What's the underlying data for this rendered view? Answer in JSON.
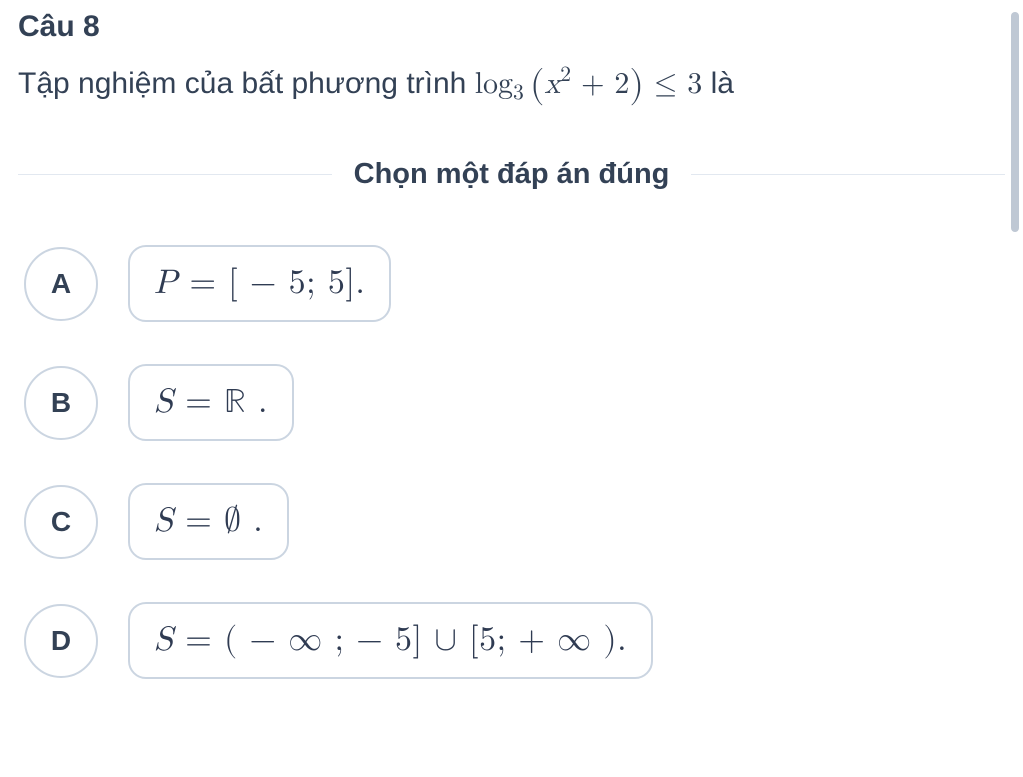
{
  "colors": {
    "text": "#334155",
    "border": "#cbd5e1",
    "divider": "#e2e8f0",
    "scrollbar": "#bfc8d4",
    "background": "#ffffff"
  },
  "question": {
    "number_label": "Câu 8",
    "prefix_text": "Tập nghiệm của bất phương trình ",
    "suffix_text": " là",
    "expression": {
      "display": "log_3 ( x^2 + 2 ) ≤ 3",
      "op": "log",
      "base": "3",
      "open_paren": "(",
      "var": "x",
      "exp": "2",
      "plus": " + ",
      "const": "2",
      "close_paren": ")",
      "rel": " ≤ ",
      "rhs": "3"
    }
  },
  "divider_label": "Chọn một đáp án đúng",
  "options": [
    {
      "key": "A",
      "parts": {
        "lhs_var": "P",
        "eq": " = ",
        "body": "[ − 5;  5].",
        "display": "P = [ −5; 5 ]."
      }
    },
    {
      "key": "B",
      "parts": {
        "lhs_var": "S",
        "eq": " = ",
        "rset": "ℝ",
        "tail": " .",
        "display": "S = ℝ ."
      }
    },
    {
      "key": "C",
      "parts": {
        "lhs_var": "S",
        "eq": " = ",
        "rset": "∅",
        "tail": " .",
        "display": "S = ∅ ."
      }
    },
    {
      "key": "D",
      "parts": {
        "lhs_var": "S",
        "eq": " = ",
        "body": "( − ∞ ;  − 5] ∪ [5;  + ∞ ).",
        "display": "S = ( −∞ ; −5 ] ∪ [ 5; +∞ )."
      }
    }
  ]
}
